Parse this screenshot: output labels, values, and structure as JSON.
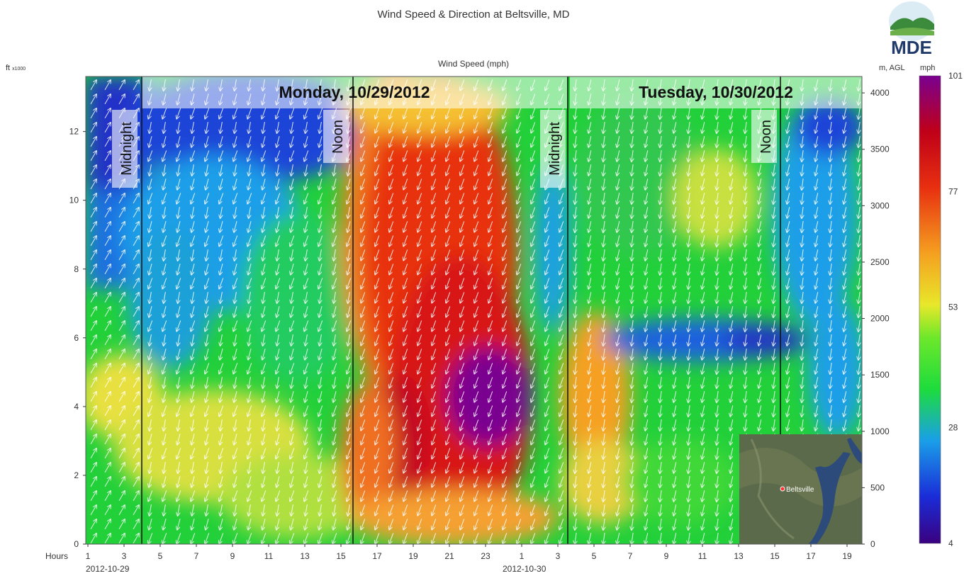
{
  "chart_data": {
    "type": "heatmap",
    "title": "Wind Speed & Direction at Beltsville, MD",
    "subtitle": "Wind Speed (mph)",
    "ylabel_left": "ft",
    "ylabel_left_unit": "x1000",
    "ylabel_right": "m, AGL",
    "colorbar_label": "mph",
    "xlabel": "Hours",
    "x_hours": [
      1,
      3,
      5,
      7,
      9,
      11,
      13,
      15,
      17,
      19,
      21,
      23,
      1,
      3,
      5,
      7,
      9,
      11,
      13,
      15,
      17,
      19
    ],
    "x_dates": [
      "2012-10-29",
      "2012-10-30"
    ],
    "y_ft_ticks": [
      0,
      2,
      4,
      6,
      8,
      10,
      12
    ],
    "ylim_ft": [
      0,
      13.6
    ],
    "y_m_ticks": [
      0,
      500,
      1000,
      1500,
      2000,
      2500,
      3000,
      3500,
      4000
    ],
    "colorbar_ticks": [
      4,
      28,
      53,
      77,
      101
    ],
    "colorbar_range": [
      4,
      101
    ],
    "colorscale": [
      "#3a0080",
      "#1a2cd8",
      "#1a9fe8",
      "#1ddc3c",
      "#6de82a",
      "#e8e82a",
      "#f5a020",
      "#e83010",
      "#c00018",
      "#7a0090"
    ],
    "day_banners": [
      "Monday, 10/29/2012",
      "Tuesday, 10/30/2012"
    ],
    "time_markers": [
      "Midnight",
      "Noon",
      "Midnight",
      "Noon"
    ],
    "inset_map_label": "Beltsville",
    "logo_text": "MDE"
  }
}
